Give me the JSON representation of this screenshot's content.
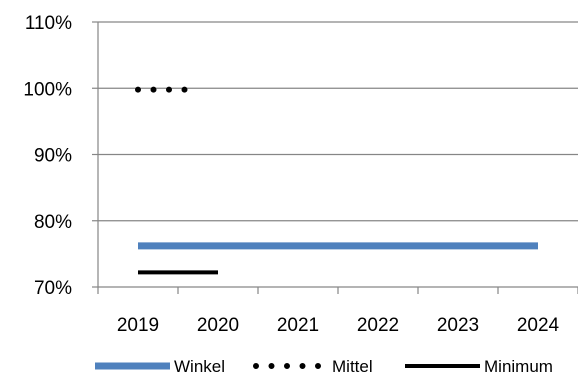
{
  "chart_data": {
    "type": "line",
    "title": "",
    "xlabel": "",
    "ylabel": "",
    "x_ticks": [
      "2019",
      "2020",
      "2021",
      "2022",
      "2023",
      "2024"
    ],
    "y_ticks": [
      "70%",
      "80%",
      "90%",
      "100%",
      "110%"
    ],
    "ylim": [
      70,
      110
    ],
    "y_unit": "%",
    "grid": "horizontal",
    "legend_position": "bottom",
    "series": [
      {
        "name": "Winkel",
        "style": "solid-thick",
        "color": "#4f81bd",
        "points": [
          [
            2019,
            76.2
          ],
          [
            2024,
            76.2
          ]
        ]
      },
      {
        "name": "Mittel",
        "style": "dotted",
        "color": "#000000",
        "points": [
          [
            2019,
            99.8
          ],
          [
            2019.6,
            99.8
          ]
        ]
      },
      {
        "name": "Minimum",
        "style": "solid",
        "color": "#000000",
        "points": [
          [
            2019,
            72.2
          ],
          [
            2020,
            72.2
          ]
        ]
      }
    ]
  }
}
